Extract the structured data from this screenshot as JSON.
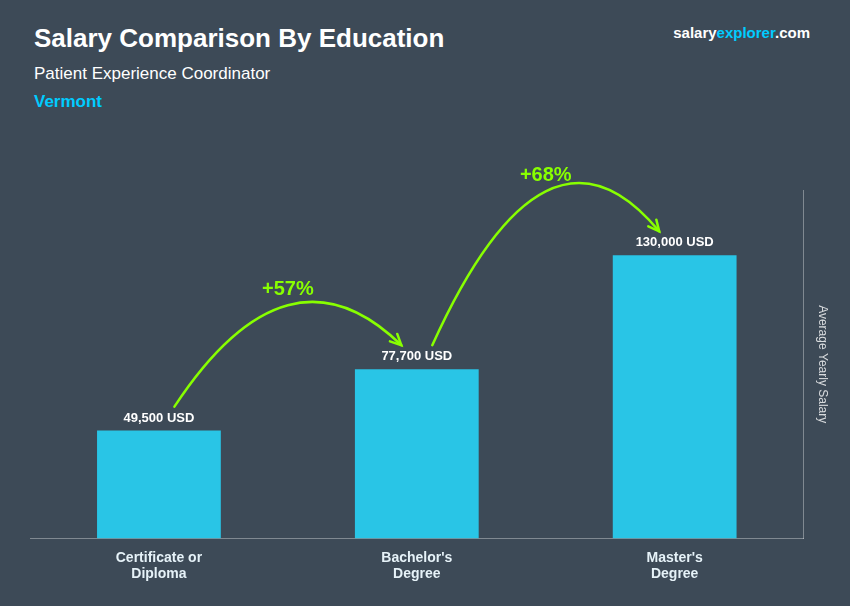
{
  "chart_data": {
    "type": "bar",
    "title": "Salary Comparison By Education",
    "subtitle": "Patient Experience Coordinator",
    "ylabel": "Average Yearly Salary",
    "categories": [
      "Certificate or\nDiploma",
      "Bachelor's\nDegree",
      "Master's\nDegree"
    ],
    "values": [
      49500,
      77700,
      130000
    ],
    "value_labels": [
      "49,500 USD",
      "77,700 USD",
      "130,000 USD"
    ],
    "data_labels": true,
    "color": "#29C5E6",
    "ylim": [
      0,
      160000
    ],
    "grid": false,
    "tick_labels": "x",
    "annotations": [
      {
        "text": "Vermont",
        "color": "#00CCFF"
      },
      {
        "text": "salary",
        "color": "#FFFFFF"
      },
      {
        "text": "explorer",
        "color": "#00CCFF"
      },
      {
        "text": ".com",
        "color": "#FFFFFF"
      },
      {
        "text": "+57%",
        "from": "Certificate or\nDiploma",
        "to": "Bachelor's\nDegree",
        "color": "#88FF00"
      },
      {
        "text": "+68%",
        "from": "Bachelor's\nDegree",
        "to": "Master's\nDegree",
        "color": "#88FF00"
      }
    ]
  }
}
